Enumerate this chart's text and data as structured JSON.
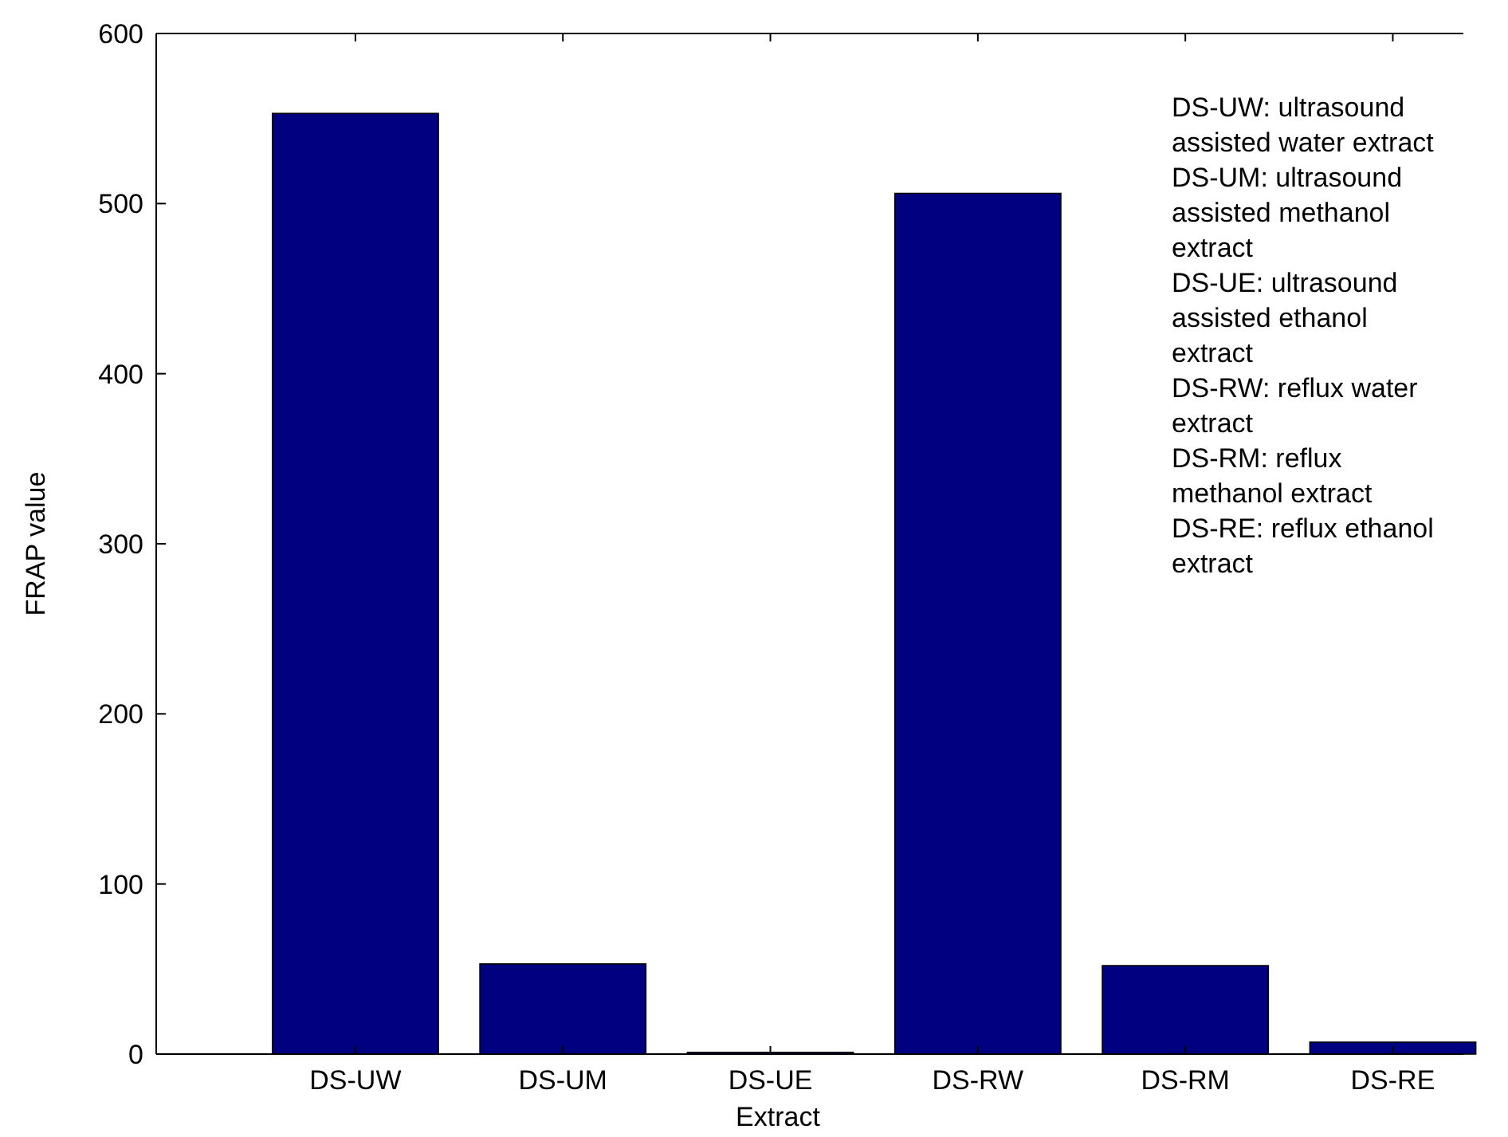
{
  "chart_data": {
    "type": "bar",
    "xlabel": "Extract",
    "ylabel": "FRAP value",
    "categories": [
      "DS-UW",
      "DS-UM",
      "DS-UE",
      "DS-RW",
      "DS-RM",
      "DS-RE"
    ],
    "values": [
      553,
      53,
      1,
      506,
      52,
      7
    ],
    "color": "#000080",
    "ylim": [
      0,
      600
    ],
    "yticks": [
      0,
      100,
      200,
      300,
      400,
      500,
      600
    ],
    "annotations": [
      "DS-UW: ultrasound assisted water extract",
      "DS-UM: ultrasound assisted methanol extract",
      "DS-UE: ultrasound assisted ethanol extract",
      "DS-RW: reflux water extract",
      "DS-RM: reflux methanol extract",
      "DS-RE: reflux ethanol extract"
    ]
  }
}
